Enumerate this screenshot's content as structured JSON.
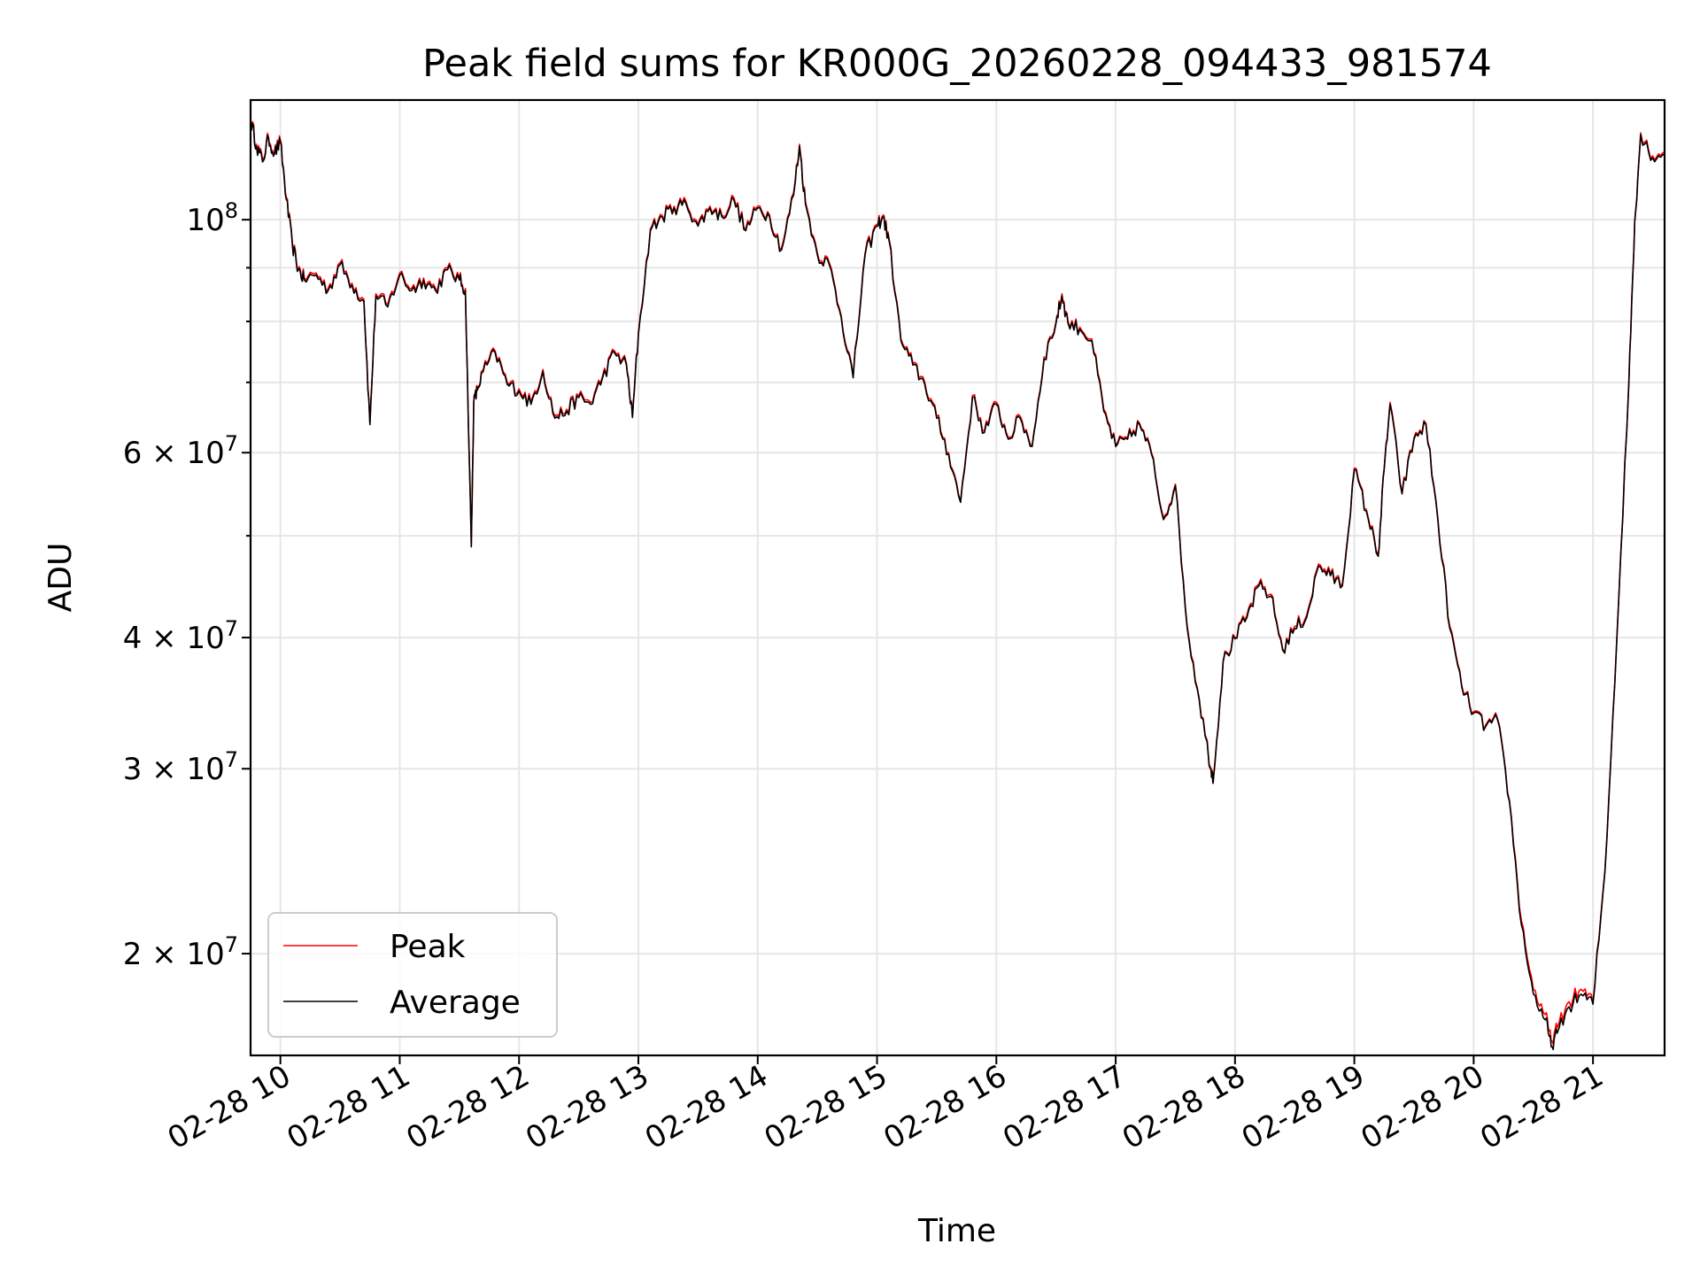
{
  "chart_data": {
    "type": "line",
    "title": "Peak field sums for KR000G_20260228_094433_981574",
    "xlabel": "Time",
    "ylabel": "ADU",
    "yscale": "log",
    "ylim": [
      16000000,
      130000000
    ],
    "xlim": [
      9.75,
      21.6
    ],
    "grid": true,
    "legend_position": "lower-left",
    "x_ticks": [
      {
        "value": 10,
        "label": "02-28 10"
      },
      {
        "value": 11,
        "label": "02-28 11"
      },
      {
        "value": 12,
        "label": "02-28 12"
      },
      {
        "value": 13,
        "label": "02-28 13"
      },
      {
        "value": 14,
        "label": "02-28 14"
      },
      {
        "value": 15,
        "label": "02-28 15"
      },
      {
        "value": 16,
        "label": "02-28 16"
      },
      {
        "value": 17,
        "label": "02-28 17"
      },
      {
        "value": 18,
        "label": "02-28 18"
      },
      {
        "value": 19,
        "label": "02-28 19"
      },
      {
        "value": 20,
        "label": "02-28 20"
      },
      {
        "value": 21,
        "label": "02-28 21"
      }
    ],
    "y_ticks": [
      {
        "value": 20000000,
        "mantissa": "2",
        "exponent": "7"
      },
      {
        "value": 30000000,
        "mantissa": "3",
        "exponent": "7"
      },
      {
        "value": 40000000,
        "mantissa": "4",
        "exponent": "7"
      },
      {
        "value": 60000000,
        "mantissa": "6",
        "exponent": "7"
      },
      {
        "value": 100000000,
        "mantissa": "",
        "exponent": "8"
      }
    ],
    "y_minor_ticks": [
      50000000,
      70000000,
      80000000,
      90000000
    ],
    "series": [
      {
        "name": "Peak",
        "color": "#ff0000",
        "x": [
          9.75,
          9.8,
          9.85,
          9.9,
          9.95,
          10.0,
          10.05,
          10.1,
          10.15,
          10.2,
          10.3,
          10.4,
          10.5,
          10.6,
          10.7,
          10.75,
          10.8,
          10.9,
          11.0,
          11.1,
          11.2,
          11.3,
          11.4,
          11.5,
          11.55,
          11.6,
          11.62,
          11.65,
          11.7,
          11.8,
          11.9,
          12.0,
          12.1,
          12.2,
          12.3,
          12.4,
          12.5,
          12.6,
          12.7,
          12.8,
          12.9,
          12.95,
          13.0,
          13.1,
          13.2,
          13.3,
          13.4,
          13.5,
          13.6,
          13.7,
          13.8,
          13.9,
          14.0,
          14.1,
          14.2,
          14.3,
          14.35,
          14.4,
          14.5,
          14.6,
          14.7,
          14.8,
          14.9,
          15.0,
          15.05,
          15.1,
          15.2,
          15.3,
          15.4,
          15.5,
          15.6,
          15.7,
          15.8,
          15.9,
          16.0,
          16.1,
          16.2,
          16.3,
          16.4,
          16.5,
          16.55,
          16.6,
          16.7,
          16.8,
          16.9,
          17.0,
          17.1,
          17.2,
          17.3,
          17.4,
          17.5,
          17.6,
          17.7,
          17.8,
          17.82,
          17.9,
          18.0,
          18.1,
          18.2,
          18.3,
          18.4,
          18.5,
          18.6,
          18.7,
          18.8,
          18.9,
          19.0,
          19.1,
          19.2,
          19.25,
          19.3,
          19.4,
          19.5,
          19.6,
          19.7,
          19.8,
          19.9,
          20.0,
          20.1,
          20.2,
          20.3,
          20.4,
          20.5,
          20.6,
          20.65,
          20.7,
          20.8,
          20.9,
          21.0,
          21.1,
          21.2,
          21.3,
          21.35,
          21.4,
          21.5,
          21.6
        ],
        "y": [
          125000000,
          118000000,
          114000000,
          120000000,
          116000000,
          119000000,
          105000000,
          95000000,
          90000000,
          88000000,
          89000000,
          86000000,
          91000000,
          87000000,
          84000000,
          64000000,
          85000000,
          83000000,
          89000000,
          86000000,
          88000000,
          86000000,
          90000000,
          88000000,
          86000000,
          49000000,
          67000000,
          69000000,
          72000000,
          75000000,
          70000000,
          69000000,
          67000000,
          72000000,
          65000000,
          66000000,
          68000000,
          67000000,
          71000000,
          75000000,
          73000000,
          65000000,
          78000000,
          98000000,
          101000000,
          103000000,
          104000000,
          99000000,
          103000000,
          101000000,
          105000000,
          98000000,
          103000000,
          101000000,
          94000000,
          106000000,
          118000000,
          104000000,
          93000000,
          91000000,
          81000000,
          71000000,
          93000000,
          99000000,
          101000000,
          96000000,
          77000000,
          73000000,
          70000000,
          65000000,
          60000000,
          54000000,
          68000000,
          63000000,
          67000000,
          62000000,
          65000000,
          61000000,
          74000000,
          80000000,
          85000000,
          80000000,
          79000000,
          77000000,
          66000000,
          61000000,
          62000000,
          64000000,
          60000000,
          52000000,
          56000000,
          41000000,
          35000000,
          30000000,
          29500000,
          38000000,
          40000000,
          42000000,
          45000000,
          44000000,
          39000000,
          41000000,
          42000000,
          47000000,
          46000000,
          45000000,
          58000000,
          53000000,
          48000000,
          58000000,
          67000000,
          55000000,
          62000000,
          64000000,
          52000000,
          41000000,
          36000000,
          34000000,
          33000000,
          33500000,
          28000000,
          21500000,
          18500000,
          17500000,
          16500000,
          17000000,
          18000000,
          18500000,
          18000000,
          24000000,
          40000000,
          70000000,
          100000000,
          121000000,
          115000000,
          116000000
        ]
      },
      {
        "name": "Average",
        "color": "#000000",
        "x": [
          9.75,
          9.8,
          9.85,
          9.9,
          9.95,
          10.0,
          10.05,
          10.1,
          10.15,
          10.2,
          10.3,
          10.4,
          10.5,
          10.6,
          10.7,
          10.75,
          10.8,
          10.9,
          11.0,
          11.1,
          11.2,
          11.3,
          11.4,
          11.5,
          11.55,
          11.6,
          11.62,
          11.65,
          11.7,
          11.8,
          11.9,
          12.0,
          12.1,
          12.2,
          12.3,
          12.4,
          12.5,
          12.6,
          12.7,
          12.8,
          12.9,
          12.95,
          13.0,
          13.1,
          13.2,
          13.3,
          13.4,
          13.5,
          13.6,
          13.7,
          13.8,
          13.9,
          14.0,
          14.1,
          14.2,
          14.3,
          14.35,
          14.4,
          14.5,
          14.6,
          14.7,
          14.8,
          14.9,
          15.0,
          15.05,
          15.1,
          15.2,
          15.3,
          15.4,
          15.5,
          15.6,
          15.7,
          15.8,
          15.9,
          16.0,
          16.1,
          16.2,
          16.3,
          16.4,
          16.5,
          16.55,
          16.6,
          16.7,
          16.8,
          16.9,
          17.0,
          17.1,
          17.2,
          17.3,
          17.4,
          17.5,
          17.6,
          17.7,
          17.8,
          17.82,
          17.9,
          18.0,
          18.1,
          18.2,
          18.3,
          18.4,
          18.5,
          18.6,
          18.7,
          18.8,
          18.9,
          19.0,
          19.1,
          19.2,
          19.25,
          19.3,
          19.4,
          19.5,
          19.6,
          19.7,
          19.8,
          19.9,
          20.0,
          20.1,
          20.2,
          20.3,
          20.4,
          20.5,
          20.6,
          20.65,
          20.7,
          20.8,
          20.9,
          21.0,
          21.1,
          21.2,
          21.3,
          21.35,
          21.4,
          21.5,
          21.6
        ],
        "y": [
          124500000,
          117500000,
          113500000,
          119500000,
          115500000,
          118500000,
          104500000,
          94600000,
          89600000,
          87600000,
          88600000,
          85600000,
          90600000,
          86600000,
          83600000,
          63800000,
          84600000,
          82600000,
          88600000,
          85600000,
          87600000,
          85600000,
          89600000,
          87600000,
          85600000,
          48800000,
          66800000,
          68800000,
          71700000,
          74700000,
          69700000,
          68700000,
          66700000,
          71700000,
          64700000,
          65700000,
          67700000,
          66700000,
          70700000,
          74700000,
          72700000,
          64800000,
          77700000,
          97600000,
          100600000,
          102600000,
          103500000,
          98600000,
          102600000,
          100600000,
          104500000,
          97600000,
          102600000,
          100600000,
          93600000,
          105500000,
          117500000,
          103500000,
          92600000,
          90600000,
          80700000,
          70700000,
          92600000,
          98600000,
          100600000,
          95600000,
          76700000,
          72700000,
          69700000,
          64700000,
          59800000,
          53800000,
          67700000,
          62700000,
          66700000,
          61800000,
          64700000,
          60800000,
          73700000,
          79700000,
          84600000,
          79700000,
          78700000,
          76700000,
          65700000,
          60800000,
          61800000,
          63800000,
          59800000,
          51800000,
          55800000,
          40800000,
          34900000,
          29900000,
          29400000,
          37900000,
          39900000,
          41800000,
          44800000,
          43800000,
          38900000,
          40800000,
          41800000,
          46800000,
          45800000,
          44800000,
          57800000,
          52800000,
          47800000,
          57800000,
          66700000,
          54800000,
          61800000,
          63800000,
          51800000,
          40800000,
          35900000,
          33900000,
          32900000,
          33400000,
          27900000,
          21300000,
          18300000,
          17300000,
          16300000,
          16800000,
          17800000,
          18300000,
          17900000,
          23900000,
          39900000,
          69700000,
          99600000,
          120500000,
          114500000,
          115500000
        ]
      }
    ]
  }
}
